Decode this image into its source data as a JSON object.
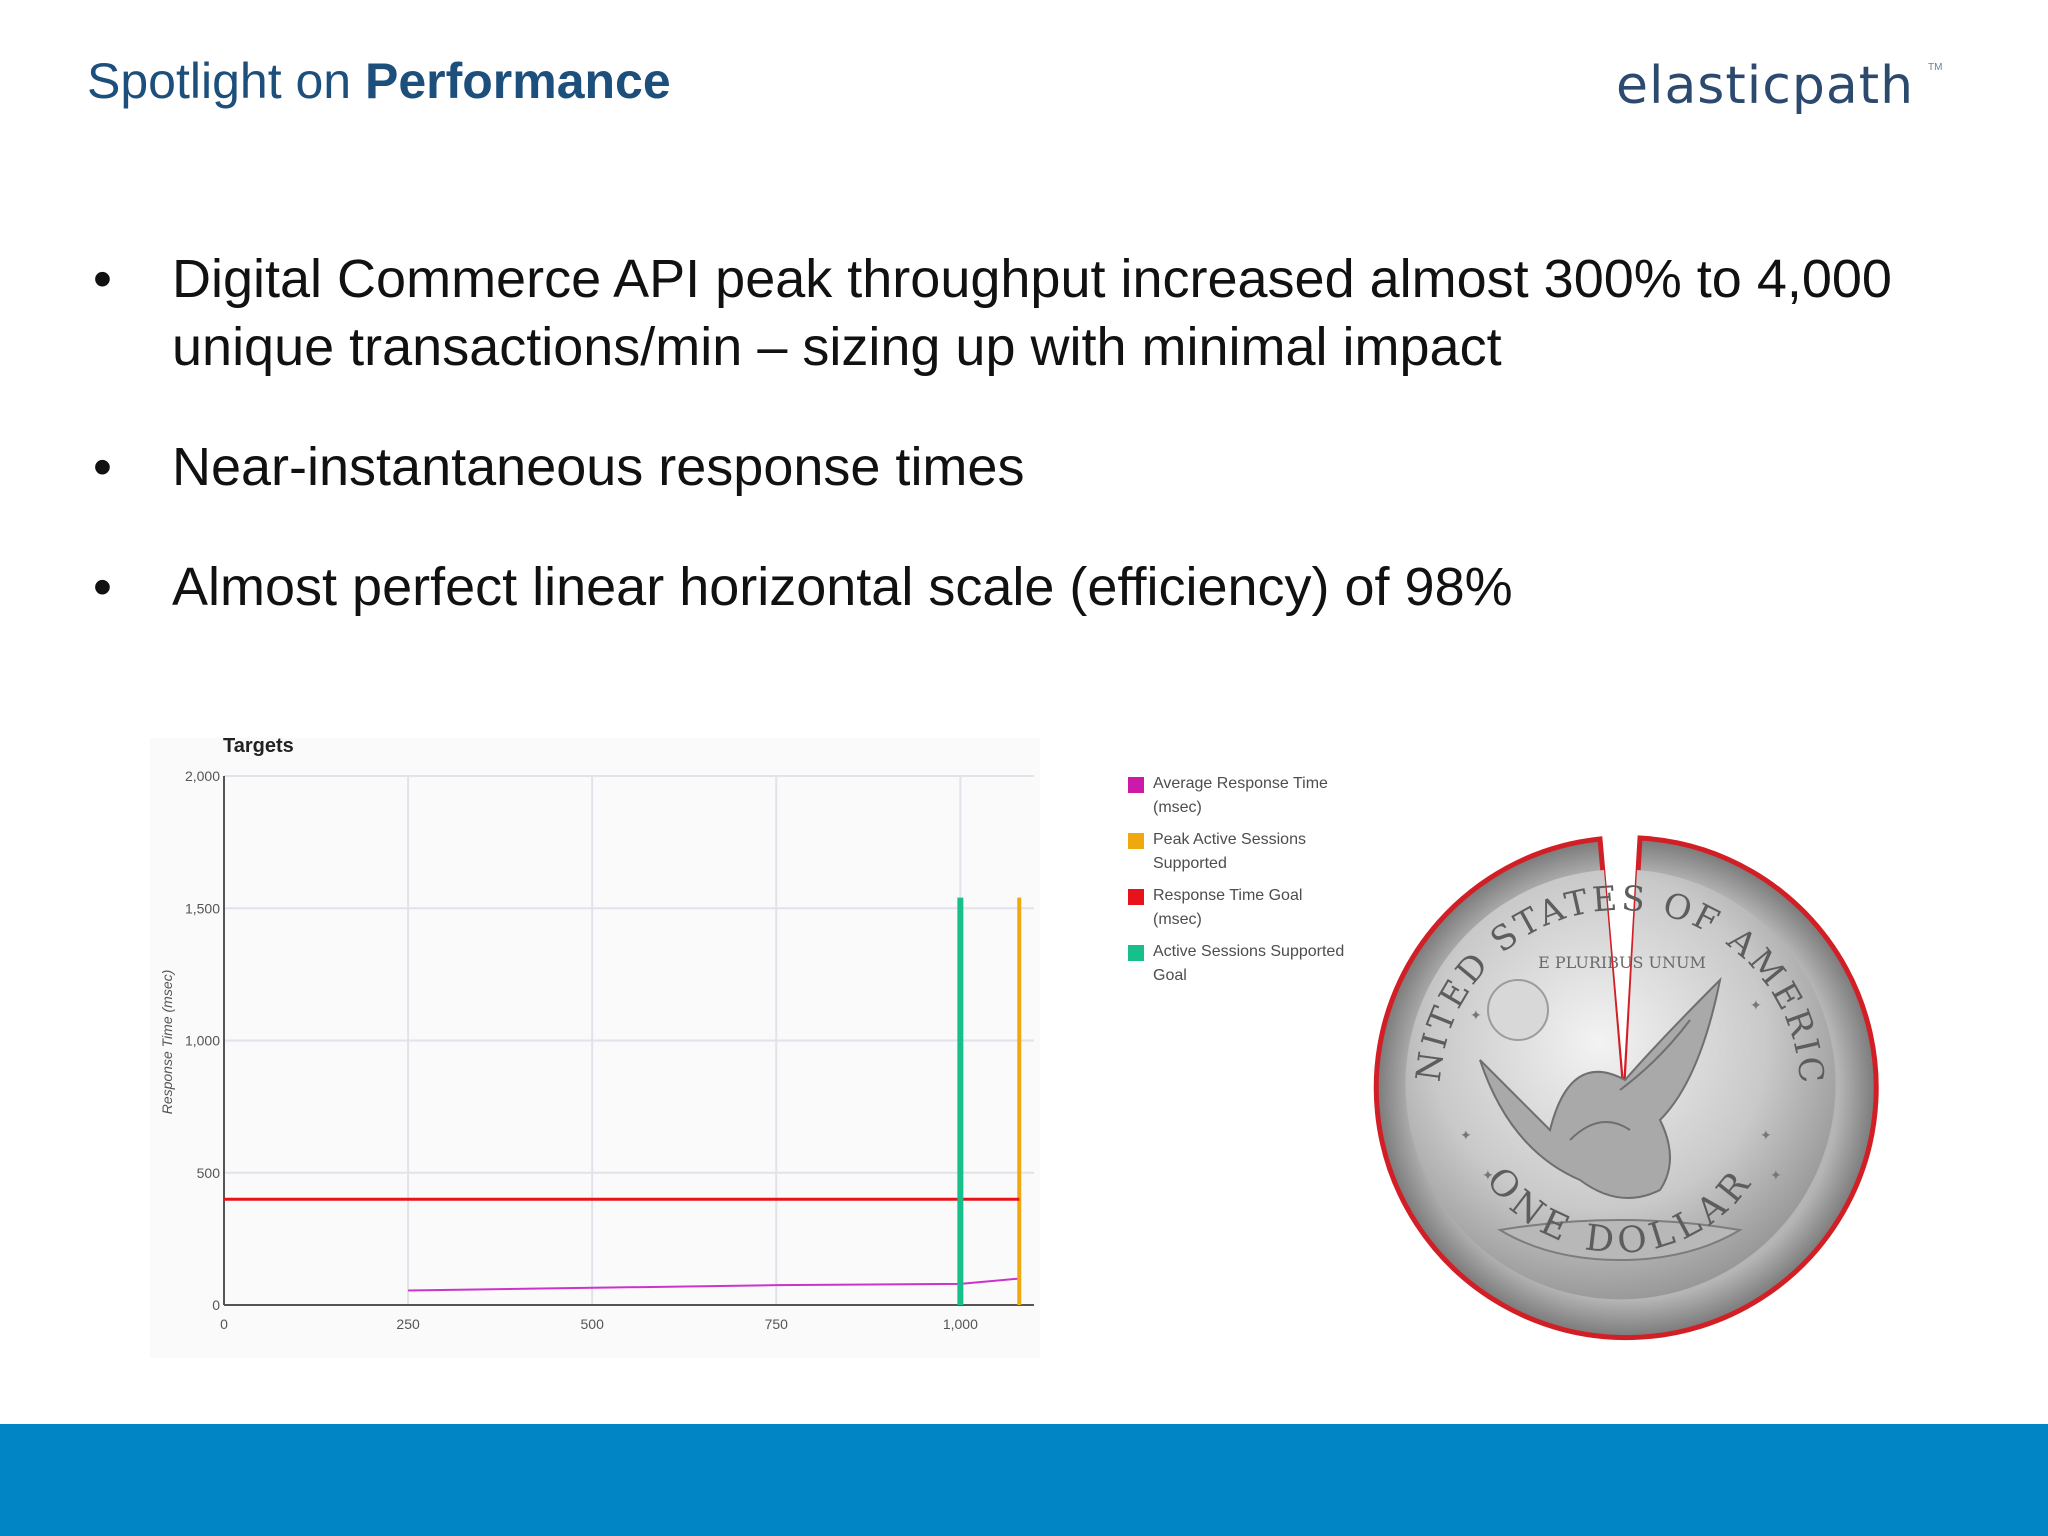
{
  "slide": {
    "title_regular": "Spotlight on ",
    "title_bold": "Performance",
    "logo_text": "elasticpath",
    "logo_tm": "TM",
    "bullet_marker": "•",
    "bullets": [
      "Digital Commerce API peak throughput increased almost 300% to 4,000 unique transactions/min – sizing up with minimal impact",
      "Near-instantaneous response times",
      "Almost perfect linear horizontal scale (efficiency) of 98%"
    ],
    "footer_color": "#0285c5"
  },
  "chart_data": {
    "type": "line",
    "title": "Targets",
    "xlabel": "",
    "ylabel": "Response Time (msec)",
    "xlim": [
      0,
      1100
    ],
    "ylim": [
      0,
      2000
    ],
    "x_ticks": [
      "0",
      "250",
      "500",
      "750",
      "1,000"
    ],
    "y_ticks": [
      "0",
      "500",
      "1,000",
      "1,500",
      "2,000"
    ],
    "grid": true,
    "legend_position": "right",
    "series": [
      {
        "name": "Average Response Time (msec)",
        "color": "#cc33cc",
        "x": [
          250,
          500,
          750,
          1000,
          1080
        ],
        "y": [
          55,
          65,
          75,
          80,
          100
        ]
      },
      {
        "name": "Peak Active Sessions Supported",
        "color": "#f0a80f",
        "x": [
          1080,
          1080
        ],
        "y": [
          0,
          1540
        ]
      },
      {
        "name": "Response Time Goal (msec)",
        "color": "#e8121b",
        "x": [
          0,
          1080
        ],
        "y": [
          400,
          400
        ]
      },
      {
        "name": "Active Sessions Supported Goal",
        "color": "#17c08a",
        "x": [
          1000,
          1000
        ],
        "y": [
          0,
          1540
        ]
      }
    ]
  },
  "coin": {
    "top_text": "UNITED STATES OF AMERICA",
    "bottom_text": "ONE DOLLAR",
    "motto": "E PLURIBUS UNUM",
    "outline_color": "#d21f26"
  }
}
